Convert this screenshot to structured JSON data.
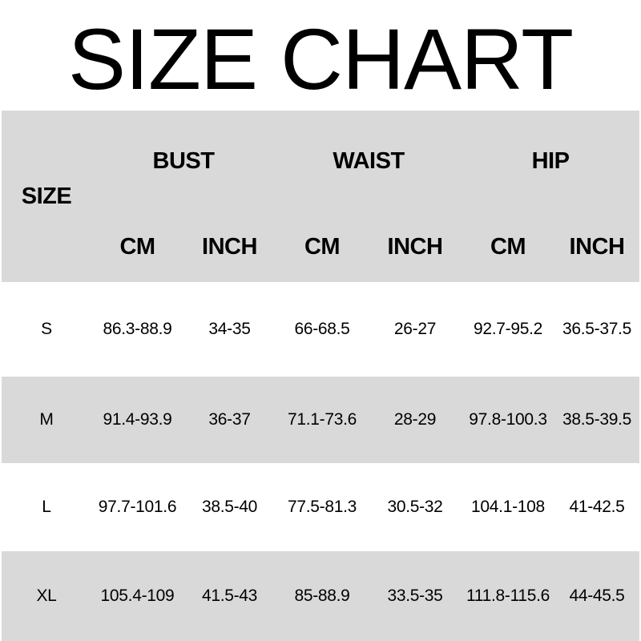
{
  "title": "SIZE CHART",
  "colors": {
    "band_gray": "#d9d9d9",
    "background": "#ffffff",
    "text": "#000000"
  },
  "size_chart": {
    "corner_label": "SIZE",
    "measurement_groups": [
      "BUST",
      "WAIST",
      "HIP"
    ],
    "unit_columns": [
      "CM",
      "INCH",
      "CM",
      "INCH",
      "CM",
      "INCH"
    ],
    "rows": [
      {
        "size": "S",
        "bust_cm": "86.3-88.9",
        "bust_inch": "34-35",
        "waist_cm": "66-68.5",
        "waist_inch": "26-27",
        "hip_cm": "92.7-95.2",
        "hip_inch": "36.5-37.5"
      },
      {
        "size": "M",
        "bust_cm": "91.4-93.9",
        "bust_inch": "36-37",
        "waist_cm": "71.1-73.6",
        "waist_inch": "28-29",
        "hip_cm": "97.8-100.3",
        "hip_inch": "38.5-39.5"
      },
      {
        "size": "L",
        "bust_cm": "97.7-101.6",
        "bust_inch": "38.5-40",
        "waist_cm": "77.5-81.3",
        "waist_inch": "30.5-32",
        "hip_cm": "104.1-108",
        "hip_inch": "41-42.5"
      },
      {
        "size": "XL",
        "bust_cm": "105.4-109",
        "bust_inch": "41.5-43",
        "waist_cm": "85-88.9",
        "waist_inch": "33.5-35",
        "hip_cm": "111.8-115.6",
        "hip_inch": "44-45.5"
      }
    ]
  },
  "chart_data": {
    "type": "table",
    "title": "SIZE CHART",
    "columns": [
      "SIZE",
      "BUST CM",
      "BUST INCH",
      "WAIST CM",
      "WAIST INCH",
      "HIP CM",
      "HIP INCH"
    ],
    "rows": [
      [
        "S",
        "86.3-88.9",
        "34-35",
        "66-68.5",
        "26-27",
        "92.7-95.2",
        "36.5-37.5"
      ],
      [
        "M",
        "91.4-93.9",
        "36-37",
        "71.1-73.6",
        "28-29",
        "97.8-100.3",
        "38.5-39.5"
      ],
      [
        "L",
        "97.7-101.6",
        "38.5-40",
        "77.5-81.3",
        "30.5-32",
        "104.1-108",
        "41-42.5"
      ],
      [
        "XL",
        "105.4-109",
        "41.5-43",
        "85-88.9",
        "33.5-35",
        "111.8-115.6",
        "44-45.5"
      ]
    ]
  }
}
